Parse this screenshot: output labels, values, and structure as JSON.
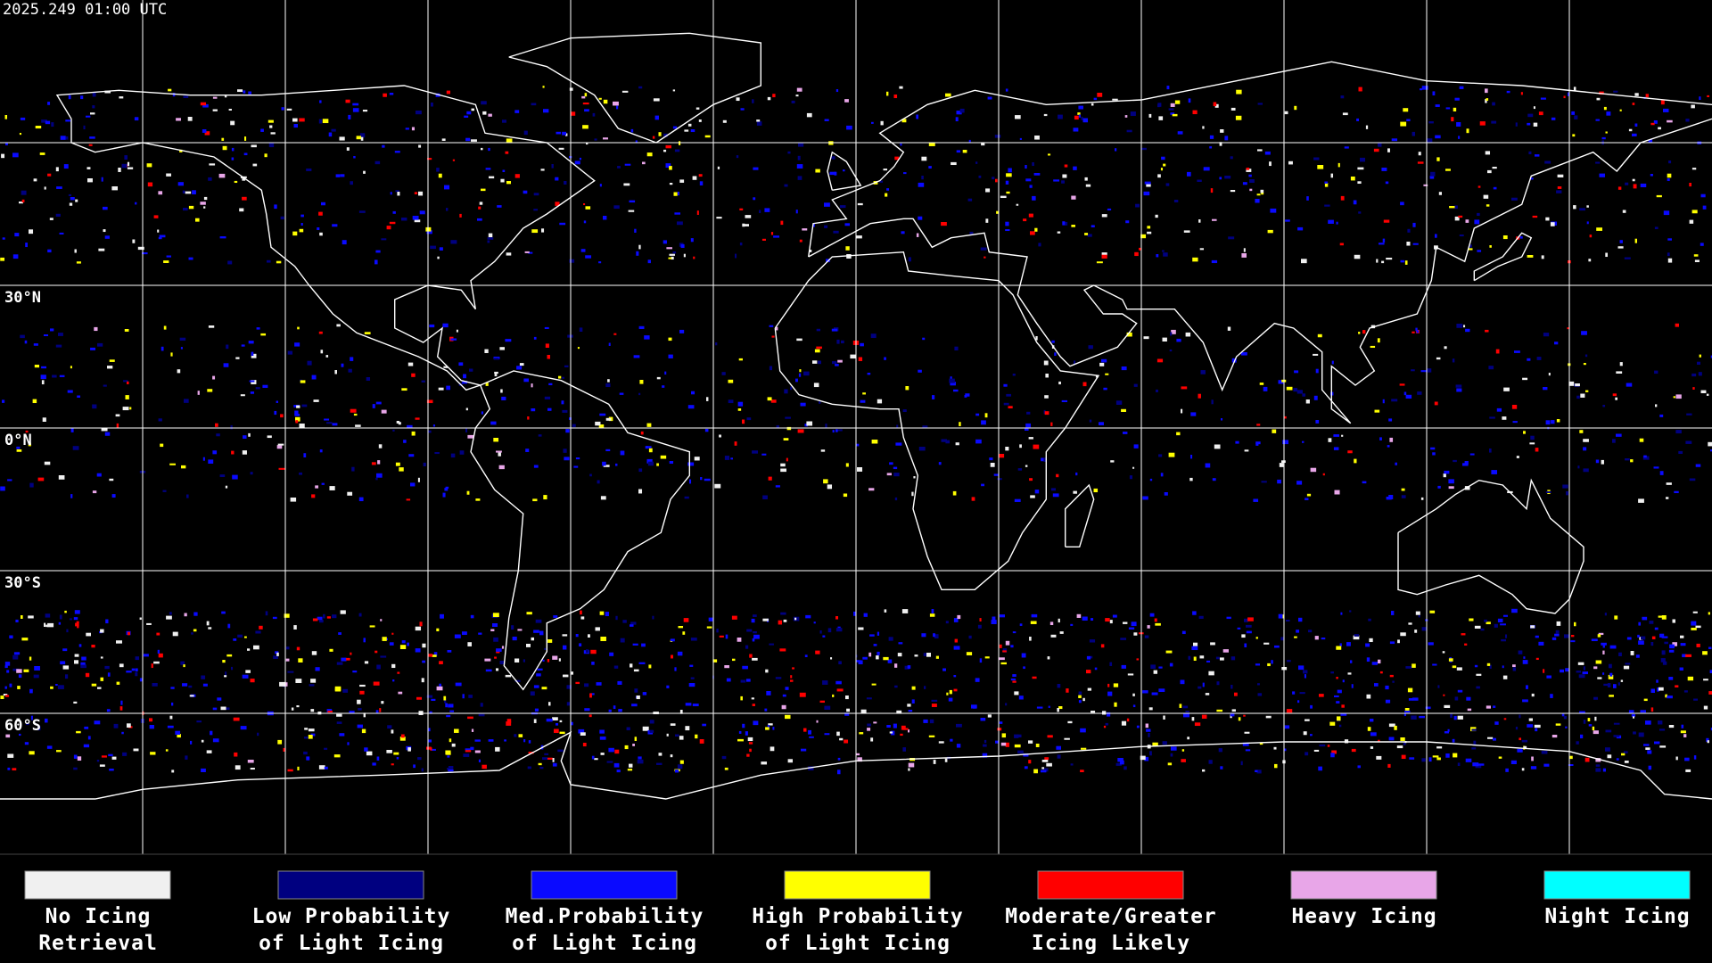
{
  "header": {
    "timestamp": "2025.249 01:00 UTC"
  },
  "map": {
    "lat_labels": [
      "30°N",
      "0°N",
      "30°S",
      "60°S"
    ]
  },
  "legend": {
    "items": [
      {
        "lines": [
          "No Icing",
          "Retrieval"
        ],
        "color": "#f0f0f0"
      },
      {
        "lines": [
          "Low Probability",
          "of Light Icing"
        ],
        "color": "#000080"
      },
      {
        "lines": [
          "Med.Probability",
          "of Light Icing"
        ],
        "color": "#0a0aff"
      },
      {
        "lines": [
          "High Probability",
          "of Light Icing"
        ],
        "color": "#ffff00"
      },
      {
        "lines": [
          "Moderate/Greater",
          "Icing Likely"
        ],
        "color": "#ff0000"
      },
      {
        "lines": [
          "Heavy Icing"
        ],
        "color": "#e8a6e8"
      },
      {
        "lines": [
          "Night Icing"
        ],
        "color": "#00ffff"
      }
    ]
  }
}
